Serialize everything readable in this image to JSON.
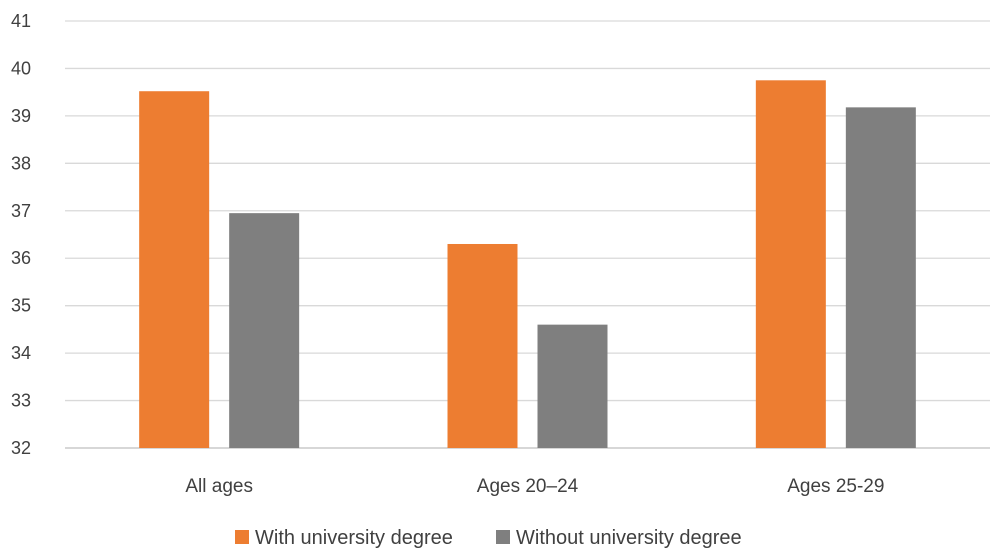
{
  "chart_data": {
    "type": "bar",
    "categories": [
      "All ages",
      "Ages 20–24",
      "Ages 25-29"
    ],
    "series": [
      {
        "name": "With university degree",
        "values": [
          39.52,
          36.3,
          39.75
        ],
        "color": "#ED7D31"
      },
      {
        "name": "Without university degree",
        "values": [
          36.95,
          34.6,
          39.18
        ],
        "color": "#7F7F7F"
      }
    ],
    "ylim": [
      32,
      41
    ],
    "yticks": [
      "32",
      "33",
      "34",
      "35",
      "36",
      "37",
      "38",
      "39",
      "40",
      "41"
    ],
    "grid": true,
    "legend_position": "bottom",
    "title": "",
    "xlabel": "",
    "ylabel": ""
  }
}
